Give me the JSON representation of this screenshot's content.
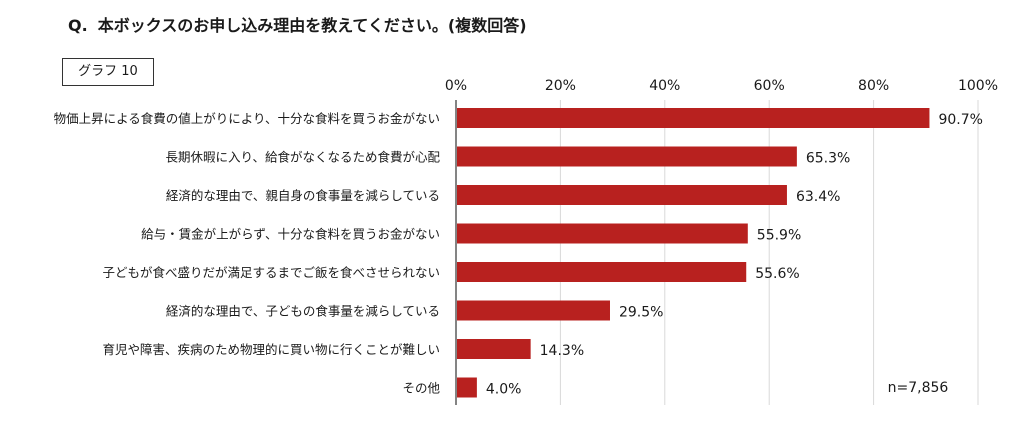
{
  "heading": {
    "prefix": "Q.",
    "text": "本ボックスのお申し込み理由を教えてください。(複数回答)"
  },
  "graph_label": "グラフ 10",
  "n_label": "n=7,856",
  "colors": {
    "bar": "#b8211f",
    "grid": "#d9d9d9",
    "axis": "#333333"
  },
  "chart_data": {
    "type": "bar",
    "orientation": "horizontal",
    "categories": [
      "物価上昇による食費の値上がりにより、十分な食料を買うお金がない",
      "長期休暇に入り、給食がなくなるため食費が心配",
      "経済的な理由で、親自身の食事量を減らしている",
      "給与・賃金が上がらず、十分な食料を買うお金がない",
      "子どもが食べ盛りだが満足するまでご飯を食べさせられない",
      "経済的な理由で、子どもの食事量を減らしている",
      "育児や障害、疾病のため物理的に買い物に行くことが難しい",
      "その他"
    ],
    "values": [
      90.7,
      65.3,
      63.4,
      55.9,
      55.6,
      29.5,
      14.3,
      4.0
    ],
    "value_labels": [
      "90.7%",
      "65.3%",
      "63.4%",
      "55.9%",
      "55.6%",
      "29.5%",
      "14.3%",
      "4.0%"
    ],
    "xlim": [
      0,
      100
    ],
    "xticks": [
      0,
      20,
      40,
      60,
      80,
      100
    ],
    "xtick_labels": [
      "0%",
      "20%",
      "40%",
      "60%",
      "80%",
      "100%"
    ],
    "axis_position": "top",
    "grid": true
  }
}
